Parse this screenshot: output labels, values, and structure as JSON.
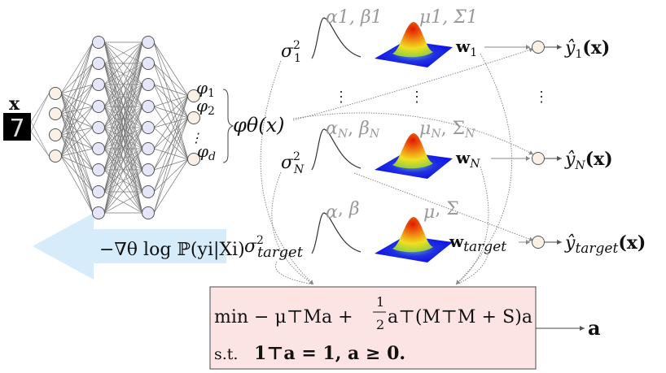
{
  "input": {
    "label": "x",
    "digit": "7"
  },
  "network": {
    "layers": [
      4,
      9,
      9,
      3
    ],
    "features": [
      "φ1",
      "φ2",
      "φd"
    ],
    "feature_label": "φθ(x)",
    "colors": {
      "input_nodes": "#faf0e6",
      "hidden_nodes": "#e6e6fa",
      "edges": "#777777"
    }
  },
  "gradient_arrow": {
    "label": "−∇θ log ℙ(yi|Xi)",
    "color": "#d6ecfa"
  },
  "tasks": [
    {
      "sigma": "σ",
      "sigma_sup": "2",
      "sigma_sub": "1",
      "hyper": "α1, β1",
      "hyper_a": "α",
      "hyper_a_sub": "1",
      "hyper_b": "β",
      "hyper_b_sub": "1",
      "prior": "μ1, Σ1",
      "mu_sub": "1",
      "sig_sub": "1",
      "w": "w",
      "w_sub": "1",
      "y": "ŷ",
      "y_sub": "1",
      "y_arg": "(x)"
    },
    {
      "sigma": "σ",
      "sigma_sup": "2",
      "sigma_sub": "N",
      "hyper_a": "α",
      "hyper_a_sub": "N",
      "hyper_b": "β",
      "hyper_b_sub": "N",
      "mu_sub": "N",
      "sig_sub": "N",
      "w": "w",
      "w_sub": "N",
      "y": "ŷ",
      "y_sub": "N",
      "y_arg": "(x)"
    },
    {
      "sigma": "σ",
      "sigma_sup": "2",
      "sigma_sub": "target",
      "hyper_a": "α",
      "hyper_a_sub": "",
      "hyper_b": "β",
      "hyper_b_sub": "",
      "mu_sub": "",
      "sig_sub": "",
      "w": "w",
      "w_sub": "target",
      "y": "ŷ",
      "y_sub": "target",
      "y_arg": "(x)"
    }
  ],
  "optimization": {
    "line1": "min  − μ⊤Ma + ",
    "frac_num": "1",
    "frac_den": "2",
    "line1b": "a⊤(M⊤M + S)a",
    "line2_prefix": "s.t.",
    "line2": "1⊤a = 1, a ≥ 0.",
    "output": "a",
    "box_color": "#fde4e4"
  },
  "gaussian_colors": {
    "base": "#1010e0",
    "mid": "#f0e020",
    "peak": "#e02000"
  }
}
